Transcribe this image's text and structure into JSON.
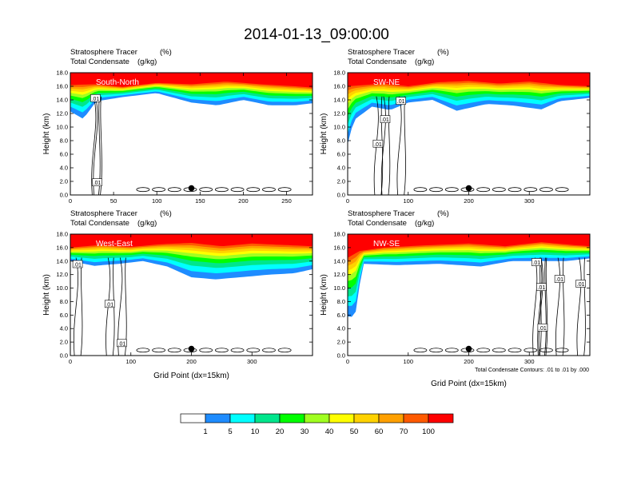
{
  "figure_title": "2014-01-13_09:00:00",
  "footnote": "Total Condensate Contours: .01 to .01 by .000",
  "chart_data": [
    {
      "type": "heatmap",
      "panel": "South-North",
      "left_string_1": "Stratosphere Tracer",
      "right_string_1": "(%)",
      "left_string_2": "Total Condensate",
      "right_string_2": "(g/kg)",
      "ylabel": "Height (km)",
      "xlabel": "",
      "xlim": [
        0,
        280
      ],
      "ylim": [
        0,
        18
      ],
      "xticks": [
        0,
        50,
        100,
        150,
        200,
        250
      ],
      "xtick_labels": [
        "0",
        "50",
        "100",
        "150",
        "200",
        "250"
      ],
      "yticks": [
        0,
        2,
        4,
        6,
        8,
        10,
        12,
        14,
        16,
        18
      ],
      "ytick_labels": [
        "0.0",
        "2.0",
        "4.0",
        "6.0",
        "8.0",
        "10.0",
        "12.0",
        "14.0",
        "16.0",
        "18.0"
      ],
      "tracer_100_base_km": [
        [
          0,
          16.2
        ],
        [
          30,
          16.3
        ],
        [
          60,
          15.9
        ],
        [
          100,
          16.5
        ],
        [
          140,
          16.3
        ],
        [
          180,
          16.7
        ],
        [
          220,
          16.3
        ],
        [
          260,
          16.0
        ],
        [
          280,
          15.8
        ]
      ],
      "tracer_1_base_km": [
        [
          0,
          12.3
        ],
        [
          15,
          11.2
        ],
        [
          30,
          13.8
        ],
        [
          60,
          14.4
        ],
        [
          100,
          15.0
        ],
        [
          140,
          13.6
        ],
        [
          170,
          13.2
        ],
        [
          200,
          14.0
        ],
        [
          230,
          13.2
        ],
        [
          260,
          13.2
        ],
        [
          280,
          13.5
        ]
      ],
      "contour_labels": [
        {
          "text": ".01",
          "x": 29,
          "y": 14.2
        },
        {
          "text": ".01",
          "x": 31,
          "y": 1.8
        }
      ],
      "marker": {
        "x": 140,
        "y": 1.0
      }
    },
    {
      "type": "heatmap",
      "panel": "SW-NE",
      "left_string_1": "Stratosphere Tracer",
      "right_string_1": "(%)",
      "left_string_2": "Total Condensate",
      "right_string_2": "(g/kg)",
      "ylabel": "Height (km)",
      "xlabel": "",
      "xlim": [
        0,
        400
      ],
      "ylim": [
        0,
        18
      ],
      "xticks": [
        0,
        100,
        200,
        300
      ],
      "xtick_labels": [
        "0",
        "100",
        "200",
        "300"
      ],
      "yticks": [
        0,
        2,
        4,
        6,
        8,
        10,
        12,
        14,
        16,
        18
      ],
      "ytick_labels": [
        "0.0",
        "2.0",
        "4.0",
        "6.0",
        "8.0",
        "10.0",
        "12.0",
        "14.0",
        "16.0",
        "18.0"
      ],
      "tracer_100_base_km": [
        [
          0,
          16.0
        ],
        [
          60,
          16.4
        ],
        [
          100,
          16.0
        ],
        [
          150,
          16.6
        ],
        [
          200,
          16.8
        ],
        [
          250,
          16.4
        ],
        [
          300,
          16.7
        ],
        [
          350,
          16.2
        ],
        [
          400,
          16.0
        ]
      ],
      "tracer_1_base_km": [
        [
          0,
          7.5
        ],
        [
          10,
          11.0
        ],
        [
          40,
          13.0
        ],
        [
          70,
          12.5
        ],
        [
          100,
          13.6
        ],
        [
          140,
          14.0
        ],
        [
          180,
          12.4
        ],
        [
          230,
          13.4
        ],
        [
          270,
          13.2
        ],
        [
          320,
          12.6
        ],
        [
          350,
          13.8
        ],
        [
          400,
          14.3
        ]
      ],
      "contour_labels": [
        {
          "text": ".01",
          "x": 88,
          "y": 13.8
        },
        {
          "text": ".01",
          "x": 62,
          "y": 11.1
        },
        {
          "text": ".01",
          "x": 50,
          "y": 7.5
        }
      ],
      "marker": {
        "x": 200,
        "y": 1.0
      }
    },
    {
      "type": "heatmap",
      "panel": "West-East",
      "left_string_1": "Stratosphere Tracer",
      "right_string_1": "(%)",
      "left_string_2": "Total Condensate",
      "right_string_2": "(g/kg)",
      "ylabel": "Height (km)",
      "xlabel": "Grid Point (dx=15km)",
      "xlim": [
        0,
        400
      ],
      "ylim": [
        0,
        18
      ],
      "xticks": [
        0,
        100,
        200,
        300
      ],
      "xtick_labels": [
        "0",
        "100",
        "200",
        "300"
      ],
      "yticks": [
        0,
        2,
        4,
        6,
        8,
        10,
        12,
        14,
        16,
        18
      ],
      "ytick_labels": [
        "0.0",
        "2.0",
        "4.0",
        "6.0",
        "8.0",
        "10.0",
        "12.0",
        "14.0",
        "16.0",
        "18.0"
      ],
      "tracer_100_base_km": [
        [
          0,
          16.0
        ],
        [
          50,
          16.4
        ],
        [
          100,
          16.1
        ],
        [
          150,
          16.5
        ],
        [
          200,
          16.7
        ],
        [
          250,
          16.2
        ],
        [
          300,
          16.6
        ],
        [
          350,
          16.4
        ],
        [
          400,
          16.2
        ]
      ],
      "tracer_1_base_km": [
        [
          0,
          14.0
        ],
        [
          40,
          13.3
        ],
        [
          80,
          13.6
        ],
        [
          120,
          14.0
        ],
        [
          160,
          13.2
        ],
        [
          200,
          11.6
        ],
        [
          240,
          11.3
        ],
        [
          280,
          11.6
        ],
        [
          330,
          12.0
        ],
        [
          370,
          12.2
        ],
        [
          400,
          12.8
        ]
      ],
      "contour_labels": [
        {
          "text": ".01",
          "x": 12,
          "y": 13.5
        },
        {
          "text": ".01",
          "x": 65,
          "y": 7.6
        },
        {
          "text": ".01",
          "x": 85,
          "y": 1.8
        }
      ],
      "marker": {
        "x": 200,
        "y": 1.0
      }
    },
    {
      "type": "heatmap",
      "panel": "NW-SE",
      "left_string_1": "Stratosphere Tracer",
      "right_string_1": "(%)",
      "left_string_2": "Total Condensate",
      "right_string_2": "(g/kg)",
      "ylabel": "Height (km)",
      "xlabel": "Grid Point (dx=15km)",
      "xlim": [
        0,
        400
      ],
      "ylim": [
        0,
        18
      ],
      "xticks": [
        0,
        100,
        200,
        300
      ],
      "xtick_labels": [
        "0",
        "100",
        "200",
        "300"
      ],
      "yticks": [
        0,
        2,
        4,
        6,
        8,
        10,
        12,
        14,
        16,
        18
      ],
      "ytick_labels": [
        "0.0",
        "2.0",
        "4.0",
        "6.0",
        "8.0",
        "10.0",
        "12.0",
        "14.0",
        "16.0",
        "18.0"
      ],
      "tracer_100_base_km": [
        [
          0,
          14.5
        ],
        [
          20,
          15.5
        ],
        [
          60,
          16.0
        ],
        [
          120,
          16.3
        ],
        [
          200,
          16.6
        ],
        [
          260,
          16.2
        ],
        [
          320,
          16.8
        ],
        [
          370,
          16.4
        ],
        [
          400,
          16.2
        ]
      ],
      "tracer_1_base_km": [
        [
          0,
          5.8
        ],
        [
          12,
          5.7
        ],
        [
          25,
          13.6
        ],
        [
          80,
          13.4
        ],
        [
          150,
          13.6
        ],
        [
          220,
          13.2
        ],
        [
          270,
          14.0
        ],
        [
          320,
          14.0
        ],
        [
          360,
          14.0
        ],
        [
          400,
          14.4
        ]
      ],
      "contour_labels": [
        {
          "text": ".01",
          "x": 312,
          "y": 13.8
        },
        {
          "text": ".01",
          "x": 320,
          "y": 10.1
        },
        {
          "text": ".01",
          "x": 350,
          "y": 11.3
        },
        {
          "text": ".01",
          "x": 385,
          "y": 10.6
        },
        {
          "text": ".01",
          "x": 322,
          "y": 4.1
        }
      ],
      "marker": {
        "x": 200,
        "y": 1.0
      }
    }
  ],
  "colorbar": {
    "labels": [
      "1",
      "5",
      "10",
      "20",
      "30",
      "40",
      "50",
      "60",
      "70",
      "100"
    ],
    "colors": [
      "#ffffff",
      "#1e8cff",
      "#00ffff",
      "#00e68c",
      "#00ff00",
      "#a0ff20",
      "#ffff00",
      "#ffd200",
      "#ffa000",
      "#ff5a00",
      "#ff0000"
    ]
  }
}
